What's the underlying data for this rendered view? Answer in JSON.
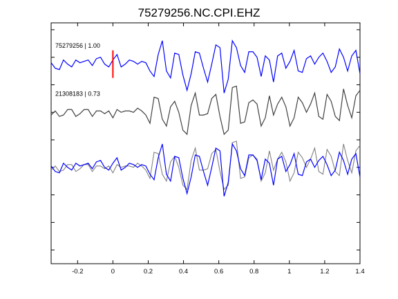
{
  "chart_data": {
    "type": "line",
    "title": "75279256.NC.CPI.EHZ",
    "xlabel": "",
    "ylabel": "",
    "xlim": [
      -0.35,
      1.4
    ],
    "xticks": [
      -0.2,
      0,
      0.2,
      0.4,
      0.6,
      0.8,
      1,
      1.2,
      1.4
    ],
    "xtick_labels": [
      "-0.2",
      "0",
      "0.2",
      "0.4",
      "0.6",
      "0.8",
      "1",
      "1.2",
      "1.4"
    ],
    "ylim": [
      -0.9,
      0.85
    ],
    "grid": false,
    "pick_time": 0,
    "colors": {
      "primary": "#0000ff",
      "reference": "#404040",
      "overlay_reference": "#808080",
      "pick": "#ff0000"
    },
    "series": [
      {
        "label": "75279256 | 1.00",
        "offset": 0.55,
        "samples": [
          0.01,
          -0.03,
          -0.04,
          0.03,
          0.0,
          -0.02,
          0.03,
          0.01,
          0.02,
          0.03,
          -0.01,
          0.04,
          0.05,
          0.0,
          -0.02,
          0.03,
          0.07,
          -0.02,
          0.0,
          0.03,
          0.02,
          0.0,
          0.02,
          0.01,
          -0.05,
          -0.09,
          0.07,
          0.17,
          -0.05,
          -0.1,
          0.08,
          0.07,
          -0.08,
          -0.19,
          -0.07,
          0.09,
          0.08,
          -0.03,
          -0.13,
          0.0,
          0.14,
          0.12,
          -0.21,
          -0.11,
          0.17,
          0.12,
          -0.01,
          -0.06,
          0.09,
          0.09,
          0.05,
          -0.09,
          0.06,
          0.03,
          -0.13,
          0.06,
          0.08,
          -0.03,
          0.02,
          0.1,
          -0.05,
          -0.06,
          0.04,
          0.06,
          0.0,
          0.05,
          0.08,
          0.02,
          -0.06,
          -0.02,
          0.11,
          0.05,
          -0.05,
          0.06,
          0.1,
          -0.07
        ]
      },
      {
        "label": "21308183 | 0.73",
        "offset": 0.2,
        "samples": [
          -0.02,
          0.01,
          -0.03,
          -0.02,
          0.02,
          0.02,
          -0.03,
          -0.01,
          0.02,
          0.02,
          -0.03,
          0.01,
          0.01,
          -0.01,
          0.01,
          -0.04,
          0.02,
          0.0,
          0.01,
          0.01,
          0.0,
          0.03,
          0.01,
          -0.02,
          -0.08,
          0.11,
          0.1,
          -0.05,
          -0.1,
          0.04,
          0.08,
          0.0,
          -0.13,
          -0.16,
          0.05,
          0.14,
          -0.02,
          -0.02,
          -0.01,
          0.1,
          0.13,
          -0.03,
          -0.16,
          -0.13,
          0.18,
          0.19,
          -0.08,
          -0.07,
          0.07,
          0.09,
          0.06,
          -0.1,
          -0.04,
          0.12,
          -0.02,
          0.06,
          0.11,
          0.04,
          -0.1,
          -0.04,
          0.11,
          0.07,
          0.0,
          0.06,
          0.14,
          -0.03,
          -0.05,
          0.13,
          0.08,
          -0.03,
          -0.06,
          0.17,
          0.05,
          -0.04,
          0.12,
          0.16
        ]
      }
    ],
    "overlay_offset": -0.2
  }
}
